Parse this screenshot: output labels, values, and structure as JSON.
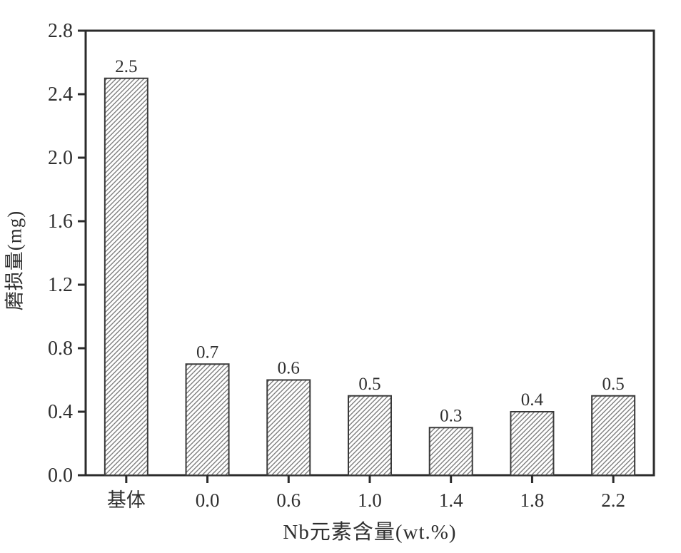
{
  "chart_data": {
    "type": "bar",
    "categories": [
      "基体",
      "0.0",
      "0.6",
      "1.0",
      "1.4",
      "1.8",
      "2.2"
    ],
    "values": [
      2.5,
      0.7,
      0.6,
      0.5,
      0.3,
      0.4,
      0.5
    ],
    "bar_labels": [
      "2.5",
      "0.7",
      "0.6",
      "0.5",
      "0.3",
      "0.4",
      "0.5"
    ],
    "title": "",
    "xlabel": "Nb元素含量(wt.%)",
    "ylabel": "磨损量(mg)",
    "ylim": [
      0.0,
      2.8
    ],
    "ytick_step": 0.4,
    "yticks": [
      "0.0",
      "0.4",
      "0.8",
      "1.2",
      "1.6",
      "2.0",
      "2.4",
      "2.8"
    ],
    "grid": false,
    "legend": "none",
    "bar_style": "diagonal-hatch",
    "colors": {
      "background": "#ffffff",
      "frame": "#2b2b2b",
      "text": "#2f2f2f",
      "bar_fill": "#ffffff",
      "bar_edge": "#3a3a3a",
      "hatch_line": "#7f7f7f"
    }
  }
}
